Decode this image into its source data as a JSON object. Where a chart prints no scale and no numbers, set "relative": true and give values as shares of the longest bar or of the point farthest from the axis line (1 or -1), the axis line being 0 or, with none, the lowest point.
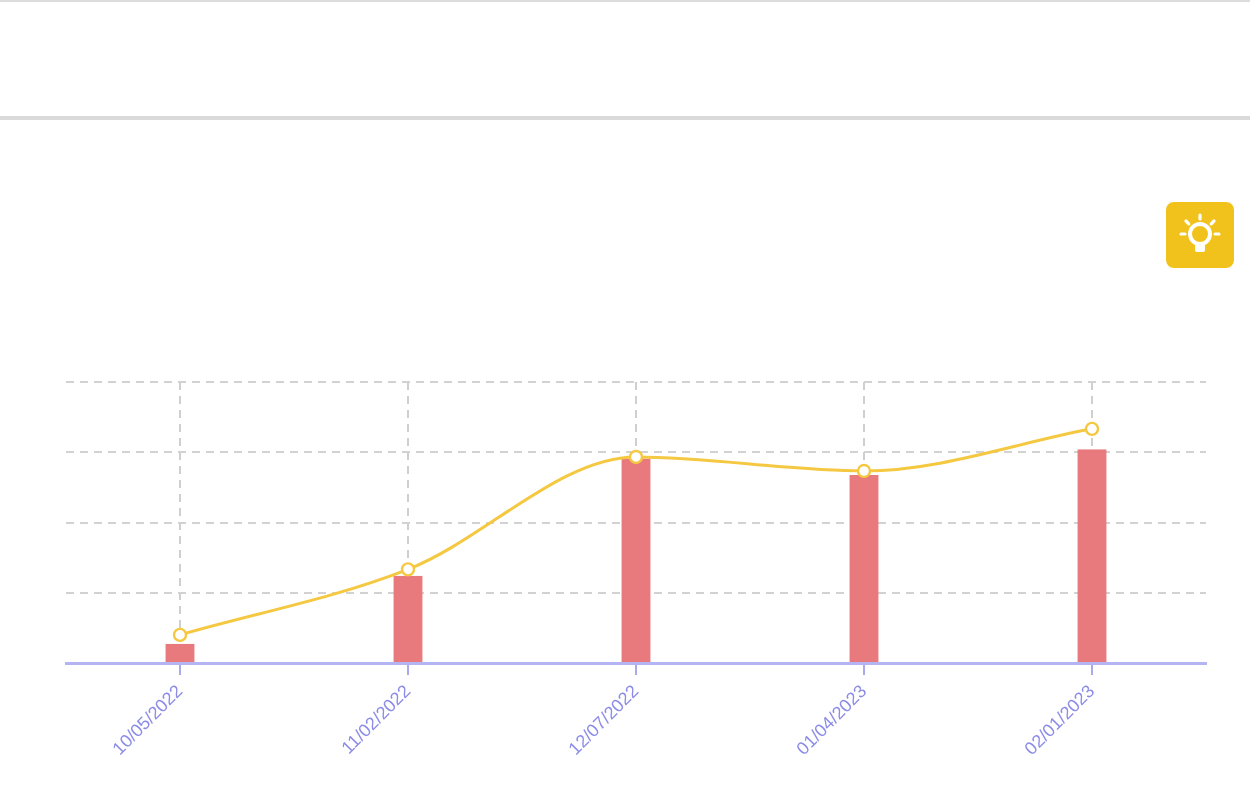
{
  "chart_data": {
    "type": "bar",
    "categories": [
      "10/05/2022",
      "11/02/2022",
      "12/07/2022",
      "01/04/2023",
      "02/01/2023"
    ],
    "relative": true,
    "series": [
      {
        "color": "#e8797c",
        "values": [
          0.08,
          0.37,
          0.87,
          0.8,
          0.91
        ]
      },
      {
        "type": "line",
        "color": "#f5c842",
        "values": [
          0.12,
          0.4,
          0.88,
          0.82,
          1
        ]
      }
    ],
    "marker": "circle",
    "grid": true
  }
}
